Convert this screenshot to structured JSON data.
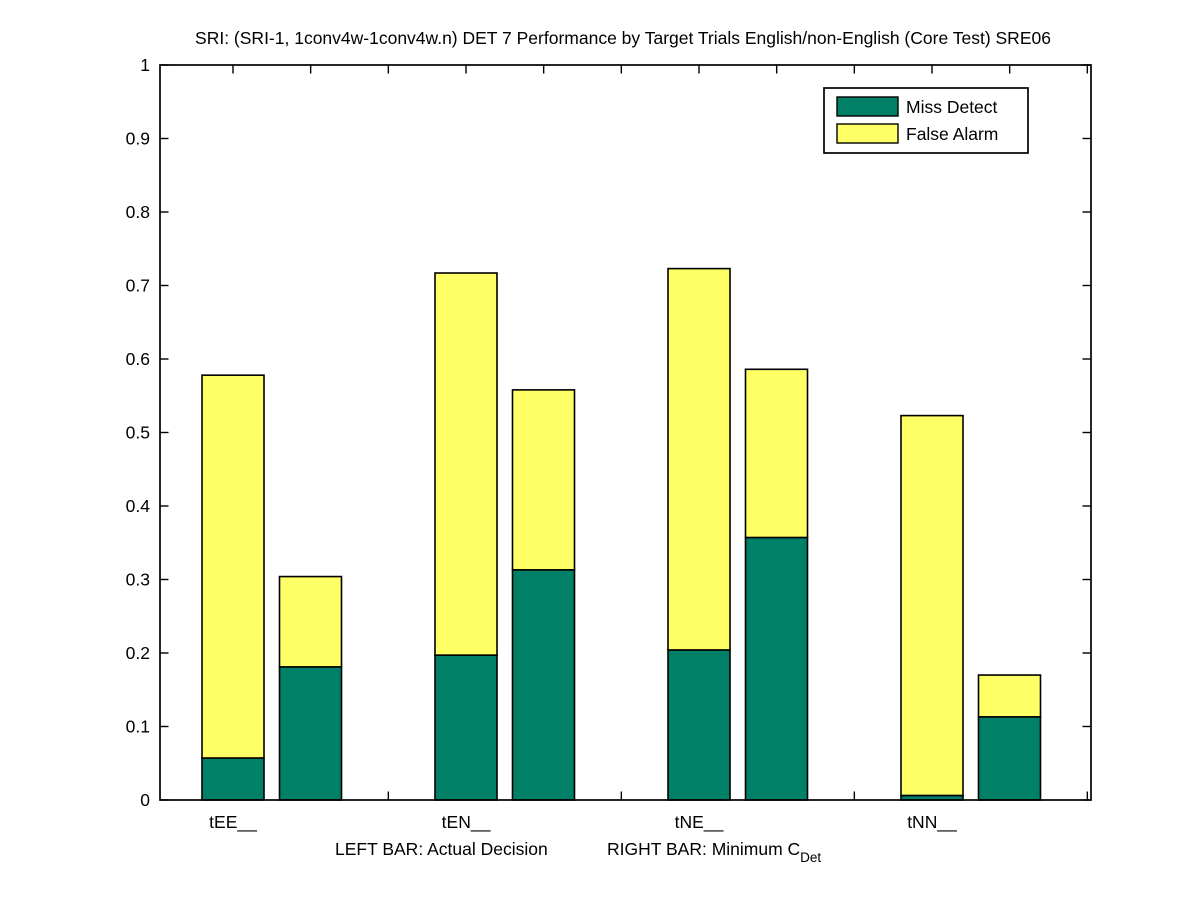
{
  "chart_data": {
    "type": "bar",
    "variant": "grouped-stacked",
    "title": "SRI: (SRI-1, 1conv4w-1conv4w.n) DET 7 Performance by Target Trials English/non-English (Core Test) SRE06",
    "categories": [
      "tEE__",
      "tEN__",
      "tNE__",
      "tNN__"
    ],
    "bars_per_category": [
      "LEFT BAR: Actual Decision",
      "RIGHT BAR: Minimum CDet"
    ],
    "series": [
      {
        "name": "Miss Detect",
        "color": "#008066",
        "values": {
          "actual_decision": [
            0.057,
            0.197,
            0.204,
            0.006
          ],
          "minimum_cdet": [
            0.181,
            0.313,
            0.357,
            0.113
          ]
        }
      },
      {
        "name": "False Alarm",
        "color": "#ffff66",
        "values": {
          "actual_decision": [
            0.521,
            0.52,
            0.519,
            0.517
          ],
          "minimum_cdet": [
            0.123,
            0.245,
            0.229,
            0.057
          ]
        }
      }
    ],
    "stack_totals": {
      "actual_decision": [
        0.578,
        0.717,
        0.723,
        0.523
      ],
      "minimum_cdet": [
        0.304,
        0.558,
        0.586,
        0.17
      ]
    },
    "ylim": [
      0,
      1
    ],
    "ytick_step": 0.1,
    "yticklabels": [
      "0",
      "0.1",
      "0.2",
      "0.3",
      "0.4",
      "0.5",
      "0.6",
      "0.7",
      "0.8",
      "0.9",
      "1"
    ],
    "grid": false,
    "xlabel": {
      "left_text": "LEFT BAR: Actual Decision",
      "right_text": "RIGHT BAR: Minimum C",
      "right_subscript": "Det"
    },
    "legend": {
      "position": "top-right",
      "entries": [
        {
          "label": "Miss Detect",
          "color": "#008066"
        },
        {
          "label": "False Alarm",
          "color": "#ffff66"
        }
      ]
    },
    "axis_color": "#000000",
    "background_color": "#ffffff"
  }
}
